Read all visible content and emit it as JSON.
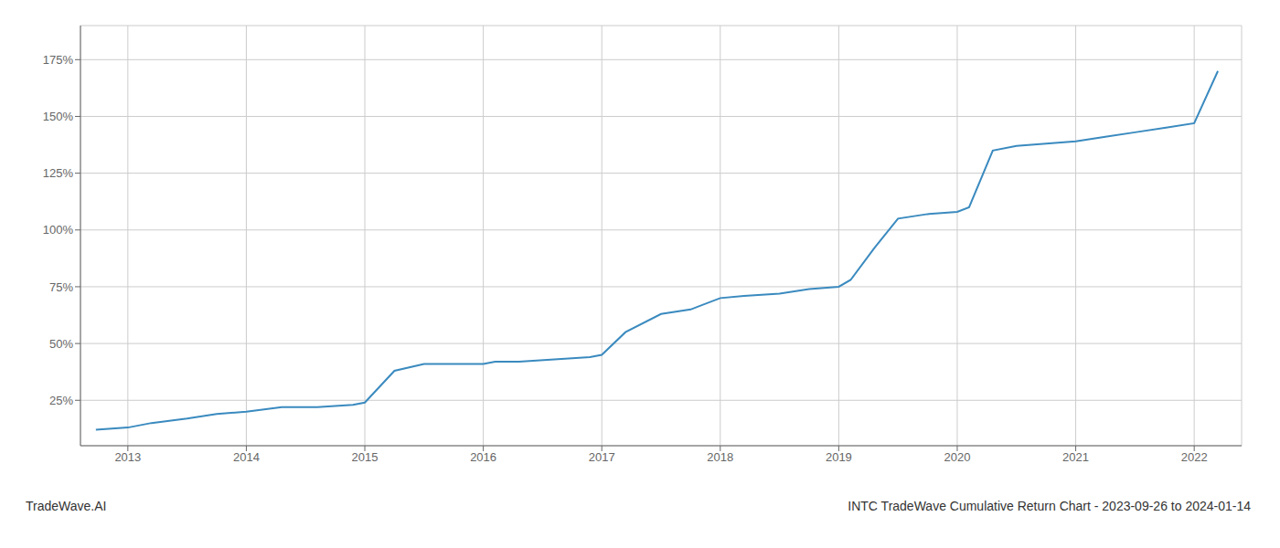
{
  "chart_data": {
    "type": "line",
    "title": "INTC TradeWave Cumulative Return Chart - 2023-09-26 to 2024-01-14",
    "annotations": [
      "TradeWave.AI"
    ],
    "color": "#3a8abf",
    "grid": true,
    "x": [
      2012.73,
      2013.0,
      2013.2,
      2013.5,
      2013.75,
      2014.0,
      2014.3,
      2014.6,
      2014.9,
      2015.0,
      2015.25,
      2015.5,
      2015.75,
      2016.0,
      2016.1,
      2016.3,
      2016.6,
      2016.9,
      2017.0,
      2017.2,
      2017.5,
      2017.75,
      2018.0,
      2018.2,
      2018.5,
      2018.75,
      2019.0,
      2019.1,
      2019.3,
      2019.5,
      2019.75,
      2020.0,
      2020.1,
      2020.3,
      2020.5,
      2020.75,
      2021.0,
      2021.25,
      2021.5,
      2021.75,
      2022.0,
      2022.2
    ],
    "values": [
      12,
      13,
      15,
      17,
      19,
      20,
      22,
      22,
      23,
      24,
      38,
      41,
      41,
      41,
      42,
      42,
      43,
      44,
      45,
      55,
      63,
      65,
      70,
      71,
      72,
      74,
      75,
      78,
      92,
      105,
      107,
      108,
      110,
      135,
      137,
      138,
      139,
      141,
      143,
      145,
      147,
      170
    ],
    "xlim": [
      2012.6,
      2022.4
    ],
    "xticks": [
      2013,
      2014,
      2015,
      2016,
      2017,
      2018,
      2019,
      2020,
      2021,
      2022
    ],
    "ylim": [
      5,
      190
    ],
    "yticks": [
      {
        "value": 25,
        "label": "25%"
      },
      {
        "value": 50,
        "label": "50%"
      },
      {
        "value": 75,
        "label": "75%"
      },
      {
        "value": 100,
        "label": "100%"
      },
      {
        "value": 125,
        "label": "125%"
      },
      {
        "value": 150,
        "label": "150%"
      },
      {
        "value": 175,
        "label": "175%"
      }
    ]
  }
}
